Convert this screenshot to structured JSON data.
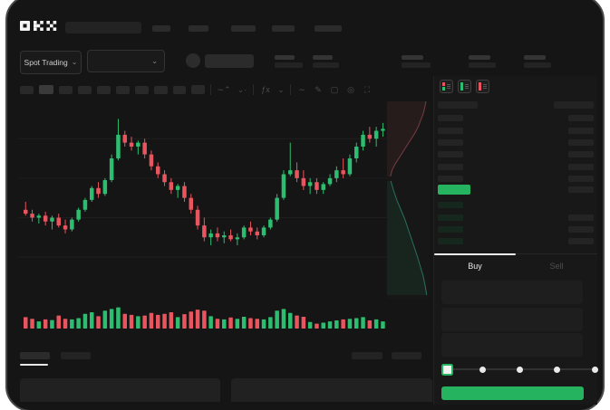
{
  "topnav": {
    "brand": "OKX"
  },
  "market_selector": {
    "label": "Spot Trading",
    "chevron": "⌄"
  },
  "toolbar_icons": [
    "indicator-zigzag",
    "chevron-down",
    "chevron-down",
    "function",
    "chevron-down",
    "trend-line",
    "draw-pencil",
    "camera",
    "settings",
    "fullscreen"
  ],
  "orderbook": {
    "view_modes": [
      "split-book",
      "bids-only-book",
      "asks-only-book"
    ],
    "ask_rows": 6,
    "bid_rows": 4,
    "bid_rows_with_amount": 3
  },
  "trade_panel": {
    "tabs": {
      "buy": "Buy",
      "sell": "Sell"
    },
    "active_tab": "Buy",
    "slider_stops": 5
  },
  "colors": {
    "up": "#2ebd70",
    "down": "#e8555e",
    "accent_green": "#26b35f",
    "bid_row_bg": "#16281d",
    "ask_bar_bg": "#242424",
    "grid": "#1e1e1e",
    "depth_ask_line": "#7a3c40",
    "depth_bid_line": "#2b6f5e"
  },
  "chart_data": {
    "type": "candlestick",
    "price_range": [
      0,
      100
    ],
    "grid": true,
    "candles": [
      [
        46,
        50,
        43,
        44
      ],
      [
        44,
        46,
        40,
        42
      ],
      [
        42,
        44,
        39,
        43
      ],
      [
        43,
        45,
        38,
        40
      ],
      [
        40,
        43,
        36,
        42
      ],
      [
        42,
        44,
        37,
        38
      ],
      [
        38,
        41,
        34,
        36
      ],
      [
        36,
        42,
        35,
        41
      ],
      [
        41,
        47,
        40,
        46
      ],
      [
        46,
        52,
        45,
        51
      ],
      [
        51,
        58,
        50,
        57
      ],
      [
        57,
        60,
        52,
        54
      ],
      [
        54,
        62,
        53,
        61
      ],
      [
        61,
        74,
        60,
        72
      ],
      [
        72,
        92,
        71,
        84
      ],
      [
        84,
        86,
        78,
        80
      ],
      [
        80,
        83,
        76,
        78
      ],
      [
        78,
        81,
        74,
        80
      ],
      [
        80,
        82,
        72,
        74
      ],
      [
        74,
        76,
        66,
        68
      ],
      [
        68,
        70,
        62,
        64
      ],
      [
        64,
        66,
        58,
        60
      ],
      [
        60,
        62,
        54,
        56
      ],
      [
        56,
        59,
        52,
        58
      ],
      [
        58,
        60,
        50,
        52
      ],
      [
        52,
        54,
        44,
        46
      ],
      [
        46,
        48,
        36,
        38
      ],
      [
        38,
        42,
        30,
        32
      ],
      [
        32,
        36,
        28,
        34
      ],
      [
        34,
        37,
        30,
        32
      ],
      [
        32,
        35,
        29,
        33
      ],
      [
        33,
        36,
        30,
        31
      ],
      [
        31,
        34,
        28,
        32
      ],
      [
        32,
        38,
        31,
        37
      ],
      [
        37,
        40,
        33,
        35
      ],
      [
        35,
        37,
        31,
        33
      ],
      [
        33,
        38,
        32,
        37
      ],
      [
        37,
        42,
        36,
        41
      ],
      [
        41,
        54,
        40,
        52
      ],
      [
        52,
        66,
        51,
        64
      ],
      [
        64,
        80,
        63,
        66
      ],
      [
        66,
        70,
        60,
        62
      ],
      [
        62,
        66,
        56,
        58
      ],
      [
        58,
        62,
        54,
        60
      ],
      [
        60,
        62,
        54,
        56
      ],
      [
        56,
        60,
        54,
        59
      ],
      [
        59,
        64,
        58,
        62
      ],
      [
        62,
        68,
        60,
        66
      ],
      [
        66,
        72,
        62,
        64
      ],
      [
        64,
        74,
        63,
        72
      ],
      [
        72,
        80,
        70,
        78
      ],
      [
        78,
        86,
        76,
        84
      ],
      [
        84,
        88,
        80,
        82
      ],
      [
        82,
        88,
        78,
        86
      ],
      [
        86,
        90,
        83,
        87
      ]
    ],
    "volumes": [
      35,
      30,
      22,
      28,
      26,
      40,
      30,
      28,
      32,
      45,
      50,
      38,
      55,
      60,
      65,
      45,
      42,
      38,
      40,
      48,
      42,
      45,
      50,
      35,
      44,
      52,
      58,
      55,
      38,
      30,
      28,
      34,
      30,
      36,
      32,
      30,
      28,
      35,
      55,
      60,
      48,
      40,
      36,
      20,
      15,
      18,
      22,
      25,
      28,
      30,
      32,
      35,
      25,
      28,
      22
    ],
    "depth": {
      "asks": [
        0.93,
        0.9,
        0.86,
        0.8,
        0.74,
        0.66,
        0.56,
        0.46,
        0.36,
        0.26,
        0.16,
        0.08,
        0.04
      ],
      "bids": [
        0.05,
        0.12,
        0.2,
        0.3,
        0.4,
        0.48,
        0.56,
        0.64,
        0.72,
        0.79,
        0.86,
        0.91,
        0.95
      ]
    }
  }
}
